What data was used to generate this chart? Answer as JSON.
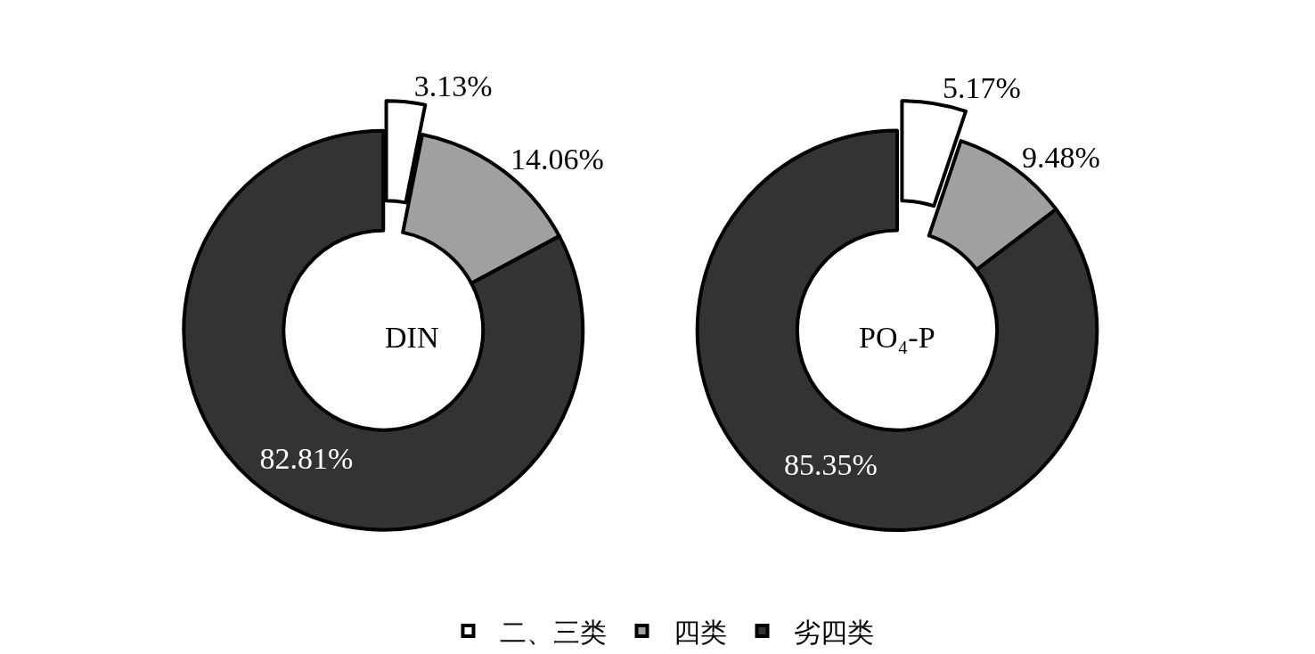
{
  "chart_data": [
    {
      "type": "donut",
      "annotations": [
        "DIN"
      ],
      "categories": [
        "二、三类",
        "四类",
        "劣四类"
      ],
      "values": [
        3.13,
        14.06,
        82.81
      ],
      "value_labels": [
        "3.13%",
        "14.06%",
        "82.81%"
      ],
      "colors": [
        "#ffffff",
        "#a0a0a0",
        "#333333"
      ],
      "legend": "bottom"
    },
    {
      "type": "donut",
      "annotations": [
        "PO₄-P"
      ],
      "values": [
        5.17,
        9.48,
        85.35
      ],
      "value_labels": [
        "5.17%",
        "9.48%",
        "85.35%"
      ],
      "colors": [
        "#ffffff",
        "#a0a0a0",
        "#333333"
      ]
    }
  ]
}
